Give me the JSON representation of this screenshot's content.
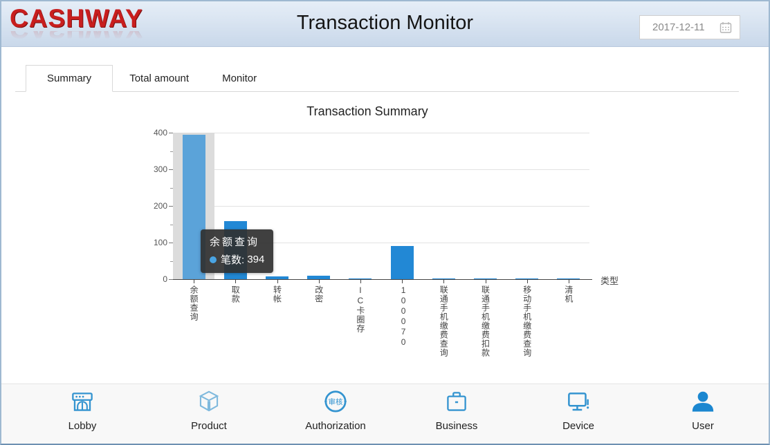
{
  "header": {
    "logo": "CASHWAY",
    "title": "Transaction Monitor",
    "date_value": "2017-12-11"
  },
  "tabs": [
    {
      "label": "Summary",
      "active": true
    },
    {
      "label": "Total amount",
      "active": false
    },
    {
      "label": "Monitor",
      "active": false
    }
  ],
  "chart_data": {
    "type": "bar",
    "title": "Transaction Summary",
    "categories": [
      "余额查询",
      "取款",
      "转帐",
      "改密",
      "IC卡圈存",
      "100070",
      "联通手机缴费查询",
      "联通手机缴费扣款",
      "移动手机缴费查询",
      "清机"
    ],
    "values": [
      394,
      158,
      7,
      10,
      2,
      90,
      2,
      2,
      2,
      1
    ],
    "series_name": "笔数",
    "xlabel": "类型",
    "ylabel": "",
    "ylim": [
      0,
      400
    ],
    "yticks": [
      0,
      100,
      200,
      300,
      400
    ],
    "grid": true,
    "legend": "none",
    "bar_color": "#2288d5",
    "highlight_bar_color": "#5ba3d9",
    "highlighted_index": 0
  },
  "tooltip": {
    "title": "余额查询",
    "label": "笔数:",
    "value": "394",
    "marker_color": "#4aa4e2"
  },
  "nav": {
    "items": [
      {
        "label": "Lobby"
      },
      {
        "label": "Product"
      },
      {
        "label": "Authorization",
        "stamp_text": "审核"
      },
      {
        "label": "Business"
      },
      {
        "label": "Device"
      },
      {
        "label": "User"
      }
    ]
  }
}
